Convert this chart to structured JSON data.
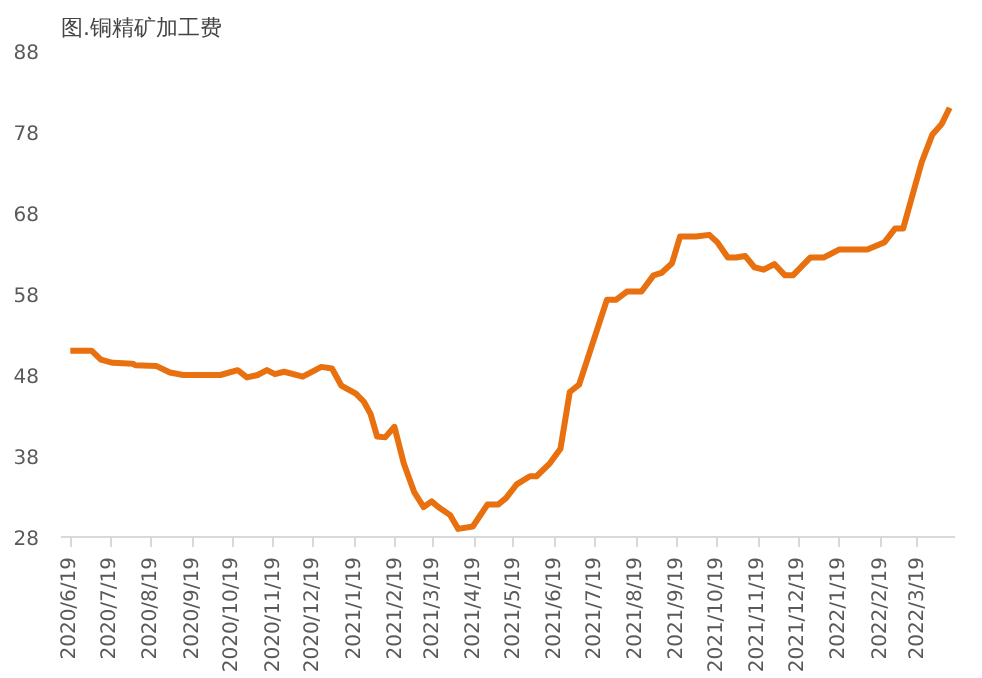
{
  "chart_data": {
    "type": "line",
    "title": "图.铜精矿加工费",
    "x": [
      "2020-06-19",
      "2020-07-05",
      "2020-07-12",
      "2020-07-21",
      "2020-08-05",
      "2020-08-07",
      "2020-08-23",
      "2020-09-02",
      "2020-09-12",
      "2020-10-10",
      "2020-10-23",
      "2020-10-30",
      "2020-11-07",
      "2020-11-14",
      "2020-11-20",
      "2020-11-27",
      "2020-12-11",
      "2020-12-25",
      "2021-01-02",
      "2021-01-09",
      "2021-01-20",
      "2021-01-26",
      "2021-01-31",
      "2021-02-05",
      "2021-02-11",
      "2021-02-18",
      "2021-02-25",
      "2021-03-05",
      "2021-03-12",
      "2021-03-18",
      "2021-03-23",
      "2021-04-01",
      "2021-04-07",
      "2021-04-18",
      "2021-04-29",
      "2021-05-07",
      "2021-05-13",
      "2021-05-21",
      "2021-05-31",
      "2021-06-05",
      "2021-06-15",
      "2021-06-23",
      "2021-06-30",
      "2021-07-07",
      "2021-07-28",
      "2021-08-04",
      "2021-08-12",
      "2021-08-23",
      "2021-09-01",
      "2021-09-07",
      "2021-09-15",
      "2021-09-21",
      "2021-10-03",
      "2021-10-13",
      "2021-10-19",
      "2021-10-27",
      "2021-11-02",
      "2021-11-09",
      "2021-11-16",
      "2021-11-23",
      "2021-12-01",
      "2021-12-09",
      "2021-12-15",
      "2021-12-28",
      "2022-01-07",
      "2022-01-19",
      "2022-02-09",
      "2022-02-22",
      "2022-03-02",
      "2022-03-08",
      "2022-03-17",
      "2022-03-22",
      "2022-03-30",
      "2022-04-06",
      "2022-04-12"
    ],
    "series": [
      {
        "color": "#e8700f",
        "values": [
          51.0,
          51.0,
          49.9,
          49.5,
          49.4,
          49.2,
          49.1,
          48.3,
          48.0,
          48.0,
          48.6,
          47.7,
          48.0,
          48.6,
          48.1,
          48.4,
          47.8,
          49.0,
          48.8,
          46.7,
          45.7,
          44.7,
          43.2,
          40.4,
          40.3,
          41.6,
          37.1,
          33.5,
          31.7,
          32.4,
          31.7,
          30.7,
          29.0,
          29.3,
          32.0,
          32.0,
          32.8,
          34.5,
          35.5,
          35.5,
          37.1,
          38.9,
          45.9,
          46.8,
          57.3,
          57.3,
          58.3,
          58.3,
          60.3,
          60.6,
          61.8,
          65.1,
          65.1,
          65.3,
          64.4,
          62.5,
          62.5,
          62.7,
          61.3,
          61.0,
          61.7,
          60.3,
          60.3,
          62.5,
          62.5,
          63.5,
          63.5,
          64.4,
          66.1,
          66.1,
          71.4,
          74.3,
          77.7,
          79.0,
          81.0
        ]
      }
    ],
    "xlim": [
      "2020-06-12",
      "2022-04-16"
    ],
    "xticks": [
      {
        "value": "2020-06-19",
        "label": "2020/6/19"
      },
      {
        "value": "2020-07-19",
        "label": "2020/7/19"
      },
      {
        "value": "2020-08-19",
        "label": "2020/8/19"
      },
      {
        "value": "2020-09-19",
        "label": "2020/9/19"
      },
      {
        "value": "2020-10-19",
        "label": "2020/10/19"
      },
      {
        "value": "2020-11-19",
        "label": "2020/11/19"
      },
      {
        "value": "2020-12-19",
        "label": "2020/12/19"
      },
      {
        "value": "2021-01-19",
        "label": "2021/1/19"
      },
      {
        "value": "2021-02-19",
        "label": "2021/2/19"
      },
      {
        "value": "2021-03-19",
        "label": "2021/3/19"
      },
      {
        "value": "2021-04-19",
        "label": "2021/4/19"
      },
      {
        "value": "2021-05-19",
        "label": "2021/5/19"
      },
      {
        "value": "2021-06-19",
        "label": "2021/6/19"
      },
      {
        "value": "2021-07-19",
        "label": "2021/7/19"
      },
      {
        "value": "2021-08-19",
        "label": "2021/8/19"
      },
      {
        "value": "2021-09-19",
        "label": "2021/9/19"
      },
      {
        "value": "2021-10-19",
        "label": "2021/10/19"
      },
      {
        "value": "2021-11-19",
        "label": "2021/11/19"
      },
      {
        "value": "2021-12-19",
        "label": "2021/12/19"
      },
      {
        "value": "2022-01-19",
        "label": "2022/1/19"
      },
      {
        "value": "2022-02-19",
        "label": "2022/2/19"
      },
      {
        "value": "2022-03-19",
        "label": "2022/3/19"
      }
    ],
    "ylim": [
      28,
      88
    ],
    "yticks": [
      28,
      38,
      48,
      58,
      68,
      78,
      88
    ],
    "grid": false,
    "marker": "none",
    "line_style": "solid"
  }
}
